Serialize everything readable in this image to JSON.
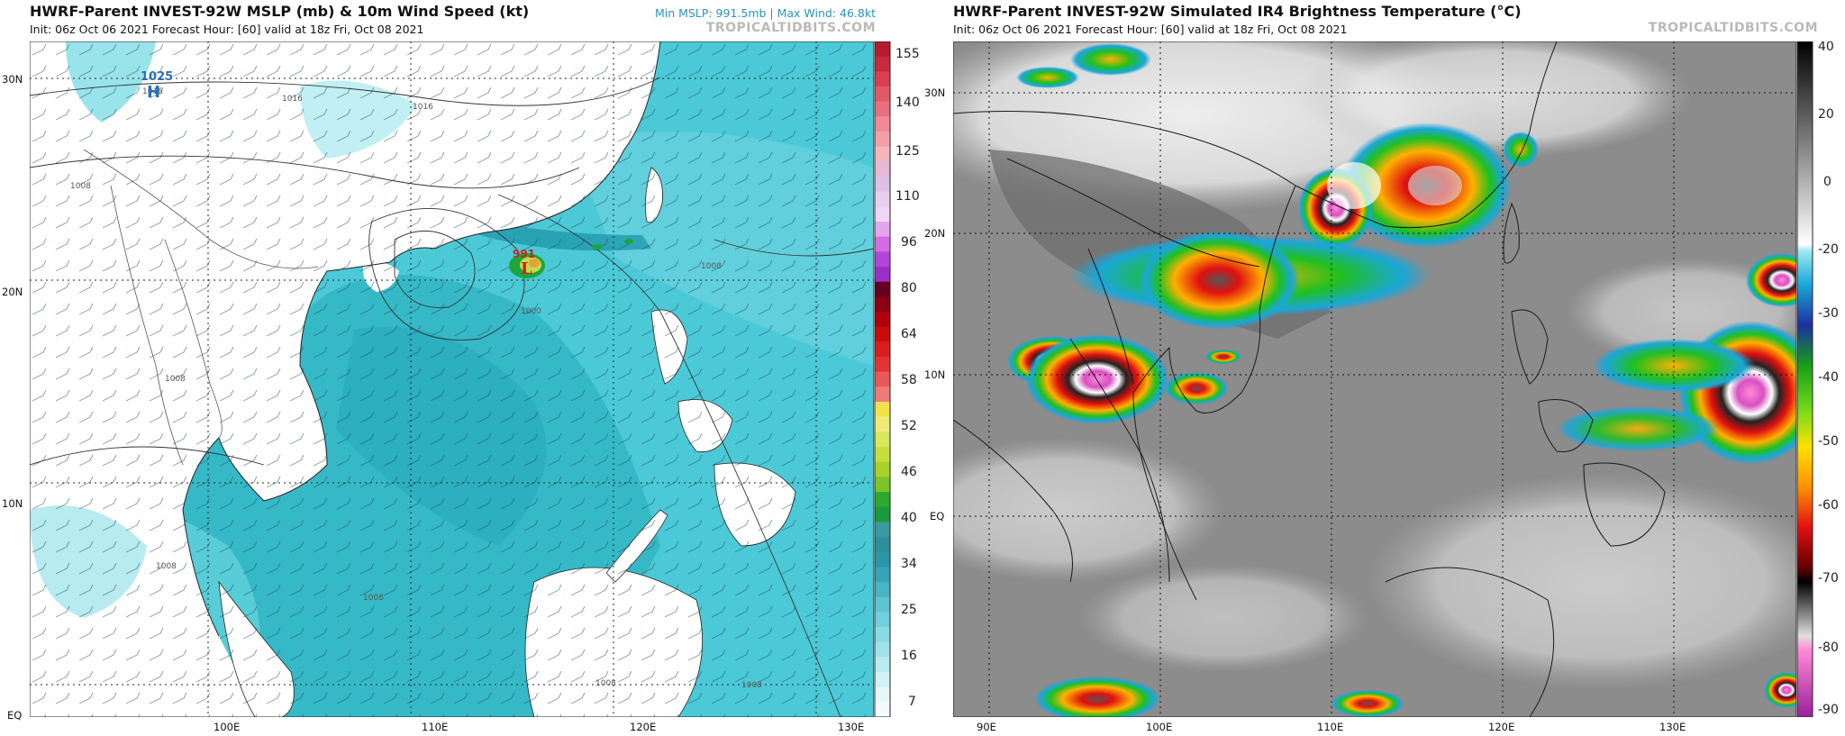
{
  "left": {
    "title": "HWRF-Parent INVEST-92W MSLP (mb) & 10m Wind Speed (kt)",
    "subtitle": "Init: 06z Oct 06 2021   Forecast Hour: [60]   valid at 18z Fri, Oct 08 2021",
    "stats": "Min MSLP: 991.5mb | Max Wind: 46.8kt",
    "brand": "TROPICALTIDBITS.COM",
    "lat_labels": [
      "30N",
      "20N",
      "10N",
      "EQ"
    ],
    "lon_labels": [
      "100E",
      "110E",
      "120E",
      "130E"
    ],
    "high_value": "1025",
    "high_letter": "H",
    "low_value": "991",
    "low_letter": "L",
    "isobar_labels": [
      "1016",
      "1016",
      "1016",
      "1008",
      "1008",
      "1008",
      "1008",
      "1008",
      "1000",
      "1008",
      "1008"
    ],
    "colorbar_ticks": [
      "155",
      "140",
      "125",
      "110",
      "96",
      "80",
      "64",
      "58",
      "52",
      "46",
      "40",
      "34",
      "25",
      "16",
      "7"
    ],
    "colors": {
      "ocean_wind": "#3cc6d4",
      "high_marker": "#2b6fb3",
      "low_marker": "#d11f1f"
    }
  },
  "right": {
    "title": "HWRF-Parent INVEST-92W Simulated IR4 Brightness Temperature (°C)",
    "subtitle": "Init: 06z Oct 06 2021   Forecast Hour: [60]   valid at 18z Fri, Oct 08 2021",
    "brand": "TROPICALTIDBITS.COM",
    "lat_labels": [
      "30N",
      "20N",
      "10N",
      "EQ"
    ],
    "lon_labels": [
      "90E",
      "100E",
      "110E",
      "120E",
      "130E"
    ],
    "colorbar_ticks": [
      "40",
      "20",
      "0",
      "-20",
      "-30",
      "-40",
      "-50",
      "-60",
      "-70",
      "-80",
      "-90"
    ]
  }
}
